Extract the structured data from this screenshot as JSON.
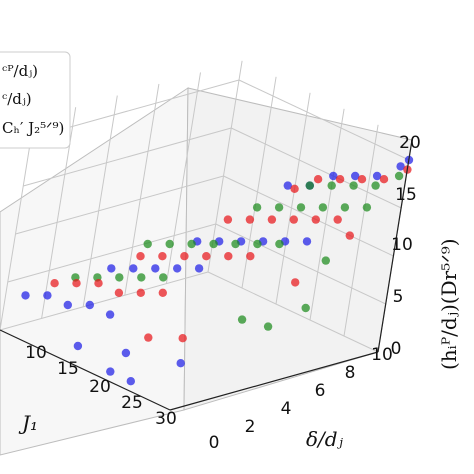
{
  "chart_data": {
    "type": "scatter",
    "projection": "3d",
    "title": "",
    "grid": true,
    "legend_placement": "top-left (partially cropped)",
    "xlabel": "J₁",
    "ylabel": "δ/dⱼ",
    "zlabel": "(hᵢᴾ/dⱼ)(Dr⁵ᐟ⁹)",
    "x_ticks": [
      "10",
      "15",
      "20",
      "25",
      "30"
    ],
    "y_ticks": [
      "0",
      "2",
      "4",
      "6",
      "8",
      "10"
    ],
    "z_ticks": [
      "0",
      "5",
      "10",
      "15",
      "20"
    ],
    "xlim": [
      5,
      30
    ],
    "ylim": [
      0,
      10
    ],
    "zlim": [
      0,
      22
    ],
    "legend": [
      "ᶜᴾ/dⱼ)",
      "ᶜ/dⱼ)",
      "Cₕ′ J₂⁵ᐟ⁹)"
    ],
    "series": [
      {
        "color": "#e8161b",
        "points": [
          [
            6,
            2,
            4
          ],
          [
            9,
            2,
            5
          ],
          [
            12,
            2,
            6
          ],
          [
            15,
            2,
            6
          ],
          [
            18,
            2,
            7
          ],
          [
            21,
            2,
            8
          ],
          [
            9,
            5,
            6
          ],
          [
            12,
            5,
            7
          ],
          [
            15,
            5,
            8
          ],
          [
            18,
            5,
            9
          ],
          [
            21,
            5,
            10
          ],
          [
            24,
            5,
            11
          ],
          [
            12,
            8,
            9
          ],
          [
            15,
            8,
            10
          ],
          [
            18,
            8,
            11
          ],
          [
            21,
            8,
            12
          ],
          [
            24,
            8,
            13
          ],
          [
            27,
            8,
            14
          ],
          [
            15,
            10,
            12
          ],
          [
            18,
            10,
            14
          ],
          [
            21,
            10,
            15
          ],
          [
            24,
            10,
            16
          ],
          [
            27,
            10,
            17
          ],
          [
            30,
            10,
            19
          ],
          [
            20,
            2,
            3
          ],
          [
            22,
            3,
            3
          ],
          [
            28,
            6,
            9
          ],
          [
            29,
            8,
            13
          ]
        ]
      },
      {
        "color": "#1e1ee6",
        "points": [
          [
            5,
            1,
            3
          ],
          [
            8,
            1,
            4
          ],
          [
            11,
            1,
            4
          ],
          [
            14,
            1,
            5
          ],
          [
            17,
            1,
            5
          ],
          [
            8,
            4,
            5
          ],
          [
            11,
            4,
            6
          ],
          [
            14,
            4,
            7
          ],
          [
            17,
            4,
            8
          ],
          [
            20,
            4,
            9
          ],
          [
            11,
            7,
            7
          ],
          [
            14,
            7,
            8
          ],
          [
            17,
            7,
            9
          ],
          [
            20,
            7,
            10
          ],
          [
            23,
            7,
            11
          ],
          [
            26,
            7,
            12
          ],
          [
            14,
            10,
            12
          ],
          [
            17,
            10,
            13
          ],
          [
            20,
            10,
            15
          ],
          [
            23,
            10,
            16
          ],
          [
            26,
            10,
            17
          ],
          [
            29,
            10,
            19
          ],
          [
            30,
            10,
            20
          ],
          [
            16,
            0,
            2
          ],
          [
            20,
            1,
            2
          ],
          [
            21,
            0,
            1
          ],
          [
            24,
            0,
            1
          ],
          [
            25,
            2,
            2
          ]
        ]
      },
      {
        "color": "#1c8a1c",
        "points": [
          [
            6,
            3,
            4
          ],
          [
            9,
            3,
            5
          ],
          [
            12,
            3,
            6
          ],
          [
            15,
            3,
            7
          ],
          [
            18,
            3,
            8
          ],
          [
            7,
            6,
            6
          ],
          [
            10,
            6,
            7
          ],
          [
            13,
            6,
            8
          ],
          [
            16,
            6,
            9
          ],
          [
            19,
            6,
            10
          ],
          [
            22,
            6,
            11
          ],
          [
            25,
            6,
            12
          ],
          [
            13,
            9,
            10
          ],
          [
            16,
            9,
            11
          ],
          [
            19,
            9,
            12
          ],
          [
            22,
            9,
            13
          ],
          [
            25,
            9,
            14
          ],
          [
            28,
            9,
            15
          ],
          [
            17,
            10,
            13
          ],
          [
            20,
            10,
            14
          ],
          [
            23,
            10,
            15
          ],
          [
            26,
            10,
            16
          ],
          [
            29,
            10,
            18
          ],
          [
            27,
            4,
            6
          ],
          [
            28,
            5,
            5
          ],
          [
            30,
            6,
            7
          ],
          [
            29,
            7,
            11
          ]
        ]
      }
    ]
  }
}
